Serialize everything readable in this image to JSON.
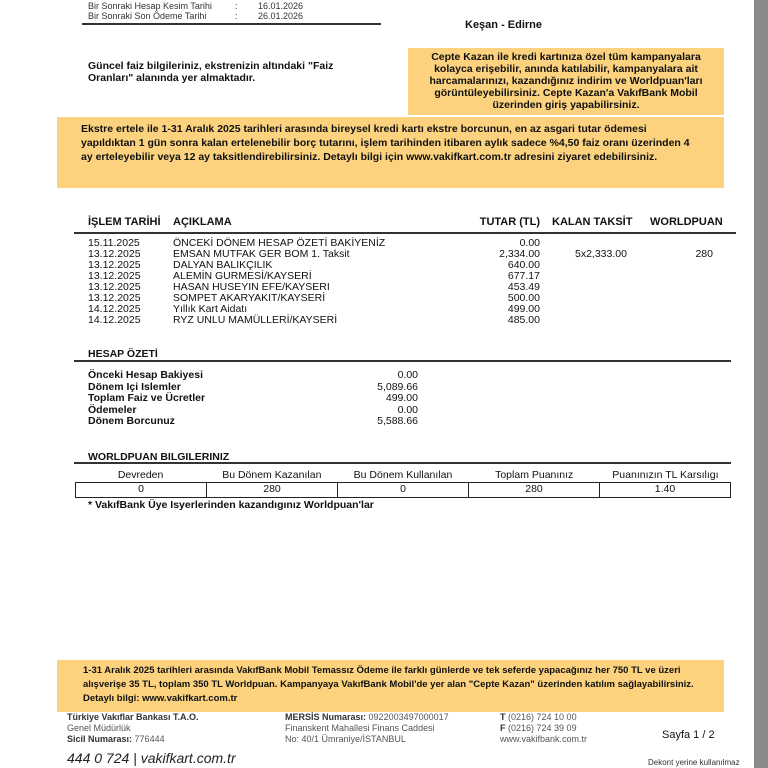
{
  "header": {
    "rows": [
      {
        "label": "Bir Sonraki Hesap Kesim Tarihi",
        "sep": ":",
        "value": "16.01.2026"
      },
      {
        "label": "Bir Sonraki Son Ödeme Tarihi",
        "sep": ":",
        "value": "26.01.2026"
      }
    ],
    "branch": "Keşan - Edirne"
  },
  "interest_note": "Güncel faiz bilgileriniz, ekstrenizin altındaki \"Faiz Oranları\" alanında yer almaktadır.",
  "cepte_kazan_box": "Cepte Kazan ile kredi kartınıza özel tüm kampanyalara kolayca erişebilir, anında katılabilir, kampanyalara ait harcamalarınızı, kazandığınız indirim ve Worldpuan'ları görüntüleyebilirsiniz. Cepte Kazan'a VakıfBank Mobil üzerinden giriş yapabilirsiniz.",
  "ekstre_ertele_box": "Ekstre ertele ile 1-31 Aralık 2025 tarihleri arasında bireysel kredi kartı ekstre borcunun, en az asgari tutar ödemesi yapıldıktan 1 gün sonra kalan ertelenebilir borç tutarını, işlem tarihinden itibaren aylık sadece %4,50 faiz oranı üzerinden 4 ay erteleyebilir veya 12 ay taksitlendirebilirsiniz. Detaylı bilgi için www.vakifkart.com.tr adresini ziyaret edebilirsiniz.",
  "transactions": {
    "headers": {
      "date": "İŞLEM TARİHİ",
      "desc": "AÇIKLAMA",
      "amount": "TUTAR (TL)",
      "installment": "KALAN TAKSİT",
      "points": "WORLDPUAN"
    },
    "rows": [
      {
        "date": "15.11.2025",
        "desc": "ÖNCEKİ DÖNEM HESAP ÖZETİ BAKİYENİZ",
        "amount": "0.00",
        "installment": "",
        "points": ""
      },
      {
        "date": "13.12.2025",
        "desc": "EMSAN MUTFAK GER BOM 1. Taksit",
        "amount": "2,334.00",
        "installment": "5x2,333.00",
        "points": "280"
      },
      {
        "date": "13.12.2025",
        "desc": "DALYAN BALIKÇILIK",
        "amount": "640.00",
        "installment": "",
        "points": ""
      },
      {
        "date": "13.12.2025",
        "desc": "ALEMİN GURMESİ/KAYSERİ",
        "amount": "677.17",
        "installment": "",
        "points": ""
      },
      {
        "date": "13.12.2025",
        "desc": "HASAN HUSEYIN EFE/KAYSERI",
        "amount": "453.49",
        "installment": "",
        "points": ""
      },
      {
        "date": "13.12.2025",
        "desc": "SOMPET AKARYAKIT/KAYSERİ",
        "amount": "500.00",
        "installment": "",
        "points": ""
      },
      {
        "date": "14.12.2025",
        "desc": "Yıllık Kart Aidatı",
        "amount": "499.00",
        "installment": "",
        "points": ""
      },
      {
        "date": "14.12.2025",
        "desc": "RYZ UNLU MAMÜLLERİ/KAYSERİ",
        "amount": "485.00",
        "installment": "",
        "points": ""
      }
    ]
  },
  "summary": {
    "title": "HESAP ÖZETİ",
    "rows": [
      {
        "label": "Önceki Hesap Bakiyesi",
        "value": "0.00"
      },
      {
        "label": "Dönem Içi Islemler",
        "value": "5,089.66"
      },
      {
        "label": "Toplam Faiz ve Ücretler",
        "value": "499.00"
      },
      {
        "label": "Ödemeler",
        "value": "0.00"
      },
      {
        "label": "Dönem Borcunuz",
        "value": "5,588.66"
      }
    ]
  },
  "worldpuan": {
    "title": "WORLDPUAN BILGILERINIZ",
    "headers": [
      "Devreden",
      "Bu Dönem Kazanılan",
      "Bu Dönem Kullanılan",
      "Toplam Puanınız",
      "Puanınızın TL Karsılıgı"
    ],
    "values": [
      "0",
      "280",
      "0",
      "280",
      "1.40"
    ],
    "note": "* VakıfBank Üye Isyerlerinden kazandıgınız Worldpuan'lar"
  },
  "campaign_box": "1-31 Aralık 2025 tarihleri arasında VakıfBank Mobil Temassız Ödeme ile farklı günlerde ve tek seferde yapacağınız her 750 TL ve üzeri alışverişe 35 TL, toplam 350 TL Worldpuan. Kampanyaya VakıfBank Mobil'de yer alan \"Cepte Kazan\" üzerinden katılım sağlayabilirsiniz. Detaylı bilgi: www.vakifkart.com.tr",
  "footer": {
    "bank": "Türkiye Vakıflar Bankası T.A.O.",
    "hq": "Genel Müdürlük",
    "sicil_label": "Sicil Numarası:",
    "sicil": "776444",
    "mersis_label": "MERSİS Numarası:",
    "mersis": "0922003497000017",
    "addr1": "Finanskent Mahallesi Finans Caddesi",
    "addr2": "No: 40/1 Ümraniye/İSTANBUL",
    "tel_label": "T",
    "tel": "(0216) 724 10 00",
    "fax_label": "F",
    "fax": "(0216) 724 39 09",
    "web": "www.vakifbank.com.tr",
    "page": "Sayfa 1 / 2",
    "hotline": "444 0 724 | vakifkart.com.tr",
    "dekont": "Dekont yerine kullanılmaz"
  },
  "colors": {
    "highlight": "#fcd27e",
    "scrollbar": "#8a8a8a"
  }
}
